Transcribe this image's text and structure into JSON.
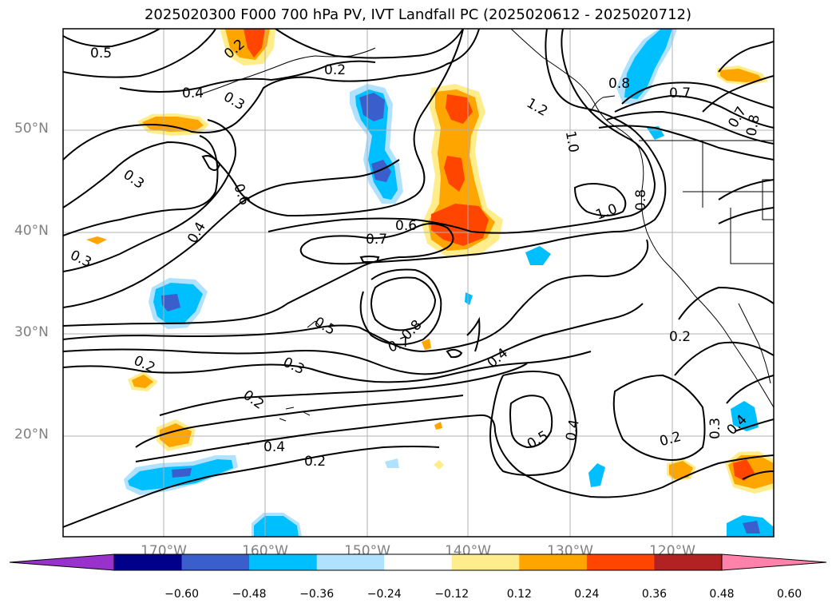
{
  "title": "2025020300 F000 700 hPa PV, IVT Landfall PC (2025020612 - 2025020712)",
  "lat_labels": [
    "50°N",
    "40°N",
    "30°N",
    "20°N"
  ],
  "lon_labels": [
    "170°W",
    "160°W",
    "150°W",
    "140°W",
    "130°W",
    "120°W"
  ],
  "contour_labels": [
    "0.5",
    "0.2",
    "0.2",
    "0.4",
    "0.3",
    "0.3",
    "0.6",
    "0.4",
    "0.3",
    "0.6",
    "0.7",
    "0.5",
    "0.8",
    "0.7",
    "0.4",
    "0.3",
    "0.2",
    "0.4",
    "0.2",
    "0.2",
    "0.5",
    "0.4",
    "0.2",
    "0.3",
    "0.4",
    "1.2",
    "1.0",
    "1.0",
    "0.8",
    "0.7",
    "0.7",
    "0.8",
    "0.8",
    "0.2"
  ],
  "colorbar": {
    "ticks": [
      "−0.60",
      "−0.48",
      "−0.36",
      "−0.24",
      "−0.12",
      "0.12",
      "0.24",
      "0.36",
      "0.48",
      "0.60"
    ],
    "colors": [
      "#9932cc",
      "#00008b",
      "#3a5fcd",
      "#00bfff",
      "#b0e2ff",
      "#ffffff",
      "#ffec8b",
      "#ffa500",
      "#ff4500",
      "#b22222",
      "#ff82ab"
    ]
  },
  "fill_colors": {
    "light_orange": "#ffec8b",
    "orange": "#ffa500",
    "red_orange": "#ff4500",
    "light_blue": "#b0e2ff",
    "blue": "#00bfff",
    "royal_blue": "#3a5fcd"
  }
}
